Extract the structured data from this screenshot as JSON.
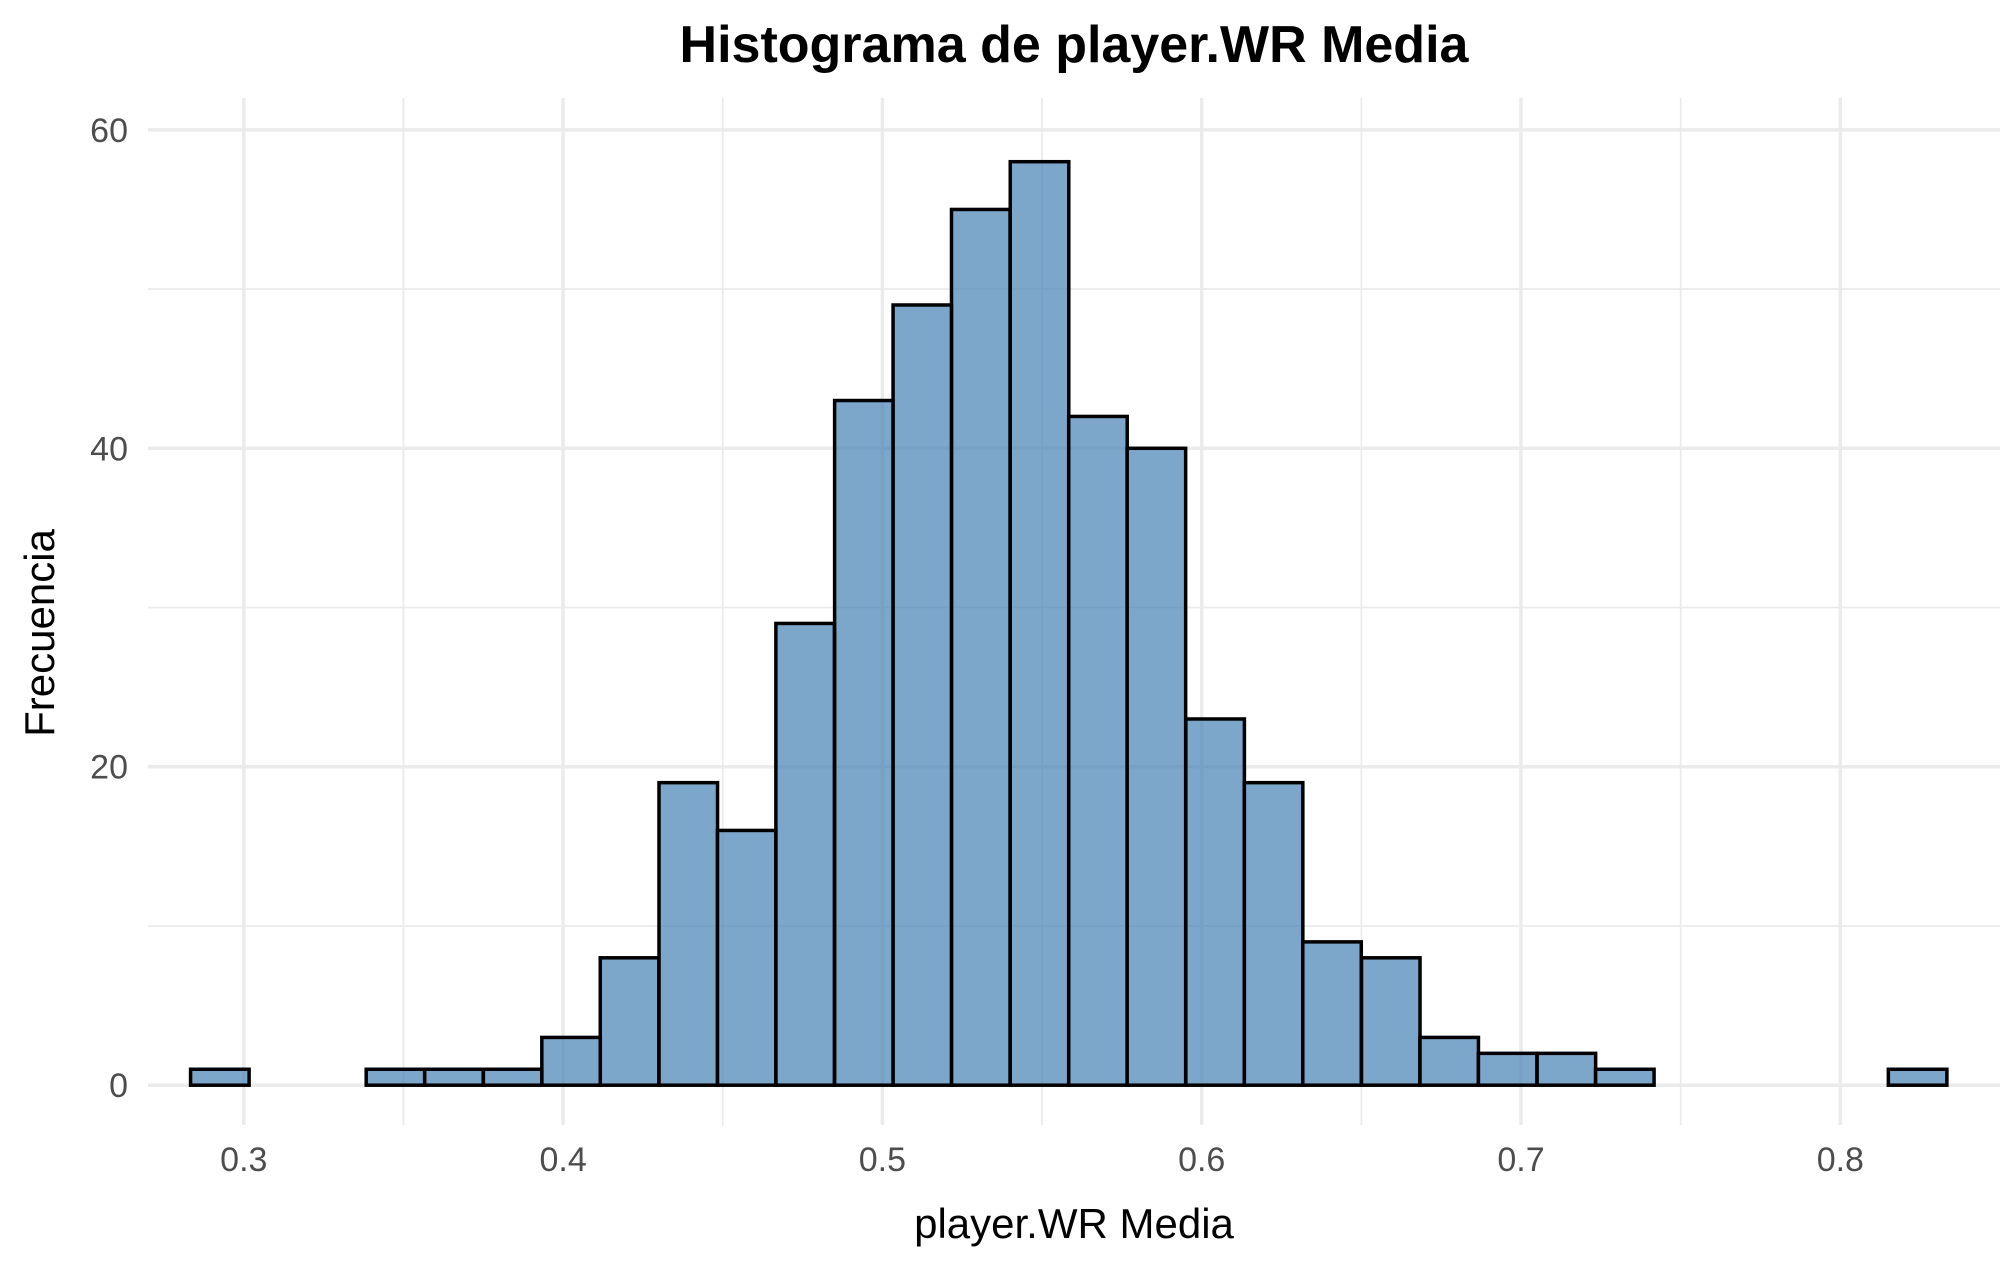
{
  "chart_data": {
    "type": "bar",
    "title": "Histograma de player.WR Media",
    "xlabel": "player.WR Media",
    "ylabel": "Frecuencia",
    "xlim": [
      0.27,
      0.85
    ],
    "ylim": [
      -2.5,
      62
    ],
    "x_ticks": [
      0.3,
      0.4,
      0.5,
      0.6,
      0.7,
      0.8
    ],
    "x_tick_labels": [
      "0.3",
      "0.4",
      "0.5",
      "0.6",
      "0.7",
      "0.8"
    ],
    "y_ticks": [
      0,
      20,
      40,
      60
    ],
    "y_tick_labels": [
      "0",
      "20",
      "40",
      "60"
    ],
    "bin_width": 0.01833,
    "bin_centers": [
      0.2925,
      0.3108,
      0.3292,
      0.3475,
      0.3658,
      0.3842,
      0.4025,
      0.4208,
      0.4392,
      0.4575,
      0.4758,
      0.4942,
      0.5125,
      0.5308,
      0.5492,
      0.5675,
      0.5858,
      0.6042,
      0.6225,
      0.6408,
      0.6592,
      0.6775,
      0.6958,
      0.7142,
      0.7325,
      0.7508,
      0.7692,
      0.7875,
      0.8058,
      0.8242
    ],
    "values": [
      1,
      0,
      0,
      1,
      1,
      1,
      3,
      8,
      19,
      16,
      29,
      43,
      49,
      55,
      58,
      42,
      40,
      23,
      19,
      9,
      8,
      3,
      2,
      2,
      1,
      0,
      0,
      0,
      0,
      1
    ],
    "fill_color": "#4682b4",
    "fill_opacity": 0.7,
    "outline_color": "#000000",
    "grid": true,
    "theme": "minimal"
  }
}
